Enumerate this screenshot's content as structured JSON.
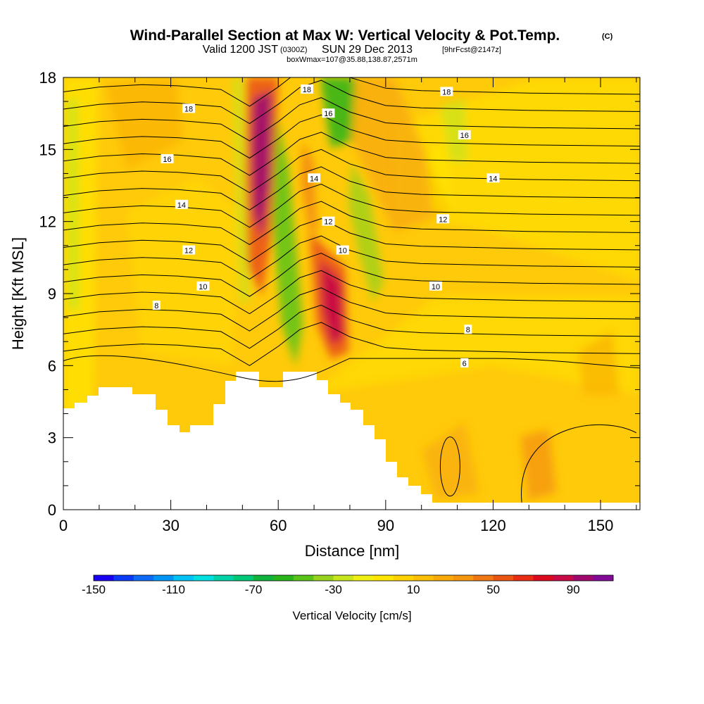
{
  "title": {
    "main": "Wind-Parallel Section at Max W: Vertical Velocity & Pot.Temp.",
    "copyright": "(C)",
    "valid_prefix": "Valid 1200 JST",
    "valid_utc": "(0300Z)",
    "valid_date": "SUN 29 Dec 2013",
    "forecast": "[9hrFcst@2147z]",
    "box_info": "boxWmax=107@35.88,138.87,2571m"
  },
  "chart_data": {
    "type": "heatmap",
    "xlabel": "Distance [nm]",
    "ylabel": "Height [Kft MSL]",
    "xlim": [
      0,
      161
    ],
    "ylim": [
      0,
      18
    ],
    "x_ticks": [
      "0",
      "30",
      "60",
      "90",
      "120",
      "150"
    ],
    "y_ticks": [
      "0",
      "3",
      "6",
      "9",
      "12",
      "15",
      "18"
    ],
    "colorbar": {
      "label": "Vertical Velocity [cm/s]",
      "tick_labels": [
        "-150",
        "-110",
        "-70",
        "-30",
        "10",
        "50",
        "90"
      ],
      "colors": [
        "#1a00f0",
        "#0a3af5",
        "#0f6af5",
        "#0095f5",
        "#00c2f5",
        "#00e0e0",
        "#00d2a8",
        "#00c878",
        "#10b43c",
        "#28b41a",
        "#5ac31a",
        "#96d21e",
        "#c8e61e",
        "#f0f014",
        "#ffe600",
        "#ffd200",
        "#fbbf05",
        "#f8aa0a",
        "#f5960f",
        "#f07814",
        "#eb5514",
        "#e82d14",
        "#dc0a1e",
        "#c80a46",
        "#a00a6e",
        "#820a96"
      ]
    },
    "contour_labels": [
      {
        "text": "18",
        "x": 35,
        "y": 16.7
      },
      {
        "text": "18",
        "x": 68,
        "y": 17.5
      },
      {
        "text": "18",
        "x": 107,
        "y": 17.4
      },
      {
        "text": "16",
        "x": 29,
        "y": 14.6
      },
      {
        "text": "16",
        "x": 74,
        "y": 16.5
      },
      {
        "text": "16",
        "x": 112,
        "y": 15.6
      },
      {
        "text": "14",
        "x": 33,
        "y": 12.7
      },
      {
        "text": "14",
        "x": 70,
        "y": 13.8
      },
      {
        "text": "14",
        "x": 120,
        "y": 13.8
      },
      {
        "text": "12",
        "x": 35,
        "y": 10.8
      },
      {
        "text": "12",
        "x": 74,
        "y": 12.0
      },
      {
        "text": "12",
        "x": 106,
        "y": 12.1
      },
      {
        "text": "10",
        "x": 39,
        "y": 9.3
      },
      {
        "text": "10",
        "x": 78,
        "y": 10.8
      },
      {
        "text": "10",
        "x": 104,
        "y": 9.3
      },
      {
        "text": "8",
        "x": 26,
        "y": 8.5
      },
      {
        "text": "8",
        "x": 113,
        "y": 7.5
      },
      {
        "text": "6",
        "x": 112,
        "y": 6.1
      }
    ]
  }
}
